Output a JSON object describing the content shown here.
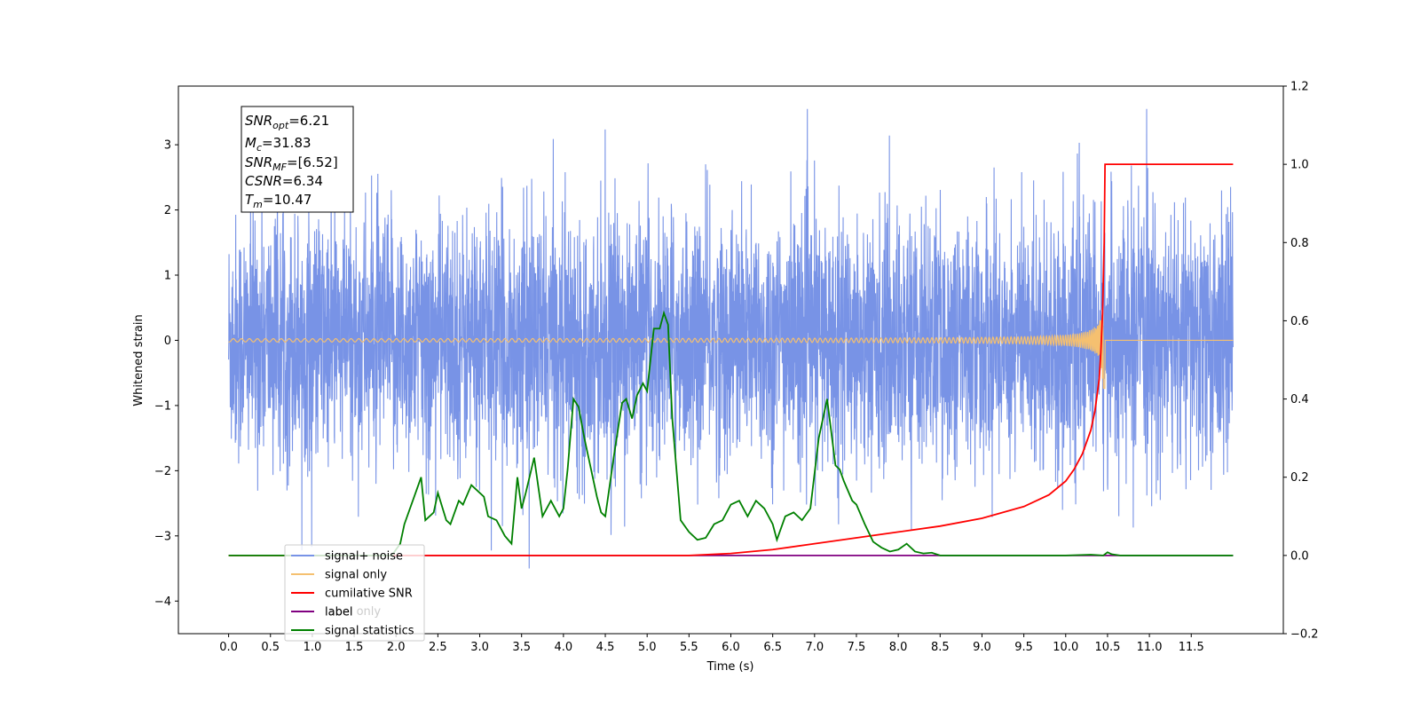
{
  "chart_data": {
    "type": "line",
    "xlabel": "Time (s)",
    "ylabel": "Whitened strain",
    "xlim": [
      -0.6,
      12.6
    ],
    "ylim": [
      -4.5,
      3.9
    ],
    "ylim_right": [
      -0.2,
      1.2
    ],
    "x_ticks": [
      "0.0",
      "0.5",
      "1.0",
      "1.5",
      "2.0",
      "2.5",
      "3.0",
      "3.5",
      "4.0",
      "4.5",
      "5.0",
      "5.5",
      "6.0",
      "6.5",
      "7.0",
      "7.5",
      "8.0",
      "8.5",
      "9.0",
      "9.5",
      "10.0",
      "10.5",
      "11.0",
      "11.5"
    ],
    "y_ticks_left": [
      "3",
      "2",
      "1",
      "0",
      "−1",
      "−2",
      "−3",
      "−4"
    ],
    "y_ticks_right": [
      "1.2",
      "1.0",
      "0.8",
      "0.6",
      "0.4",
      "0.2",
      "0.0",
      "−0.2"
    ],
    "annotation": {
      "snr_opt": {
        "label": "SNR",
        "sub": "opt",
        "value": "=6.21"
      },
      "mc": {
        "label": "M",
        "sub": "c",
        "value": "=31.83"
      },
      "snr_mf": {
        "label": "SNR",
        "sub": "MF",
        "value": "=[6.52]"
      },
      "csnr": {
        "label": "CSNR",
        "sub": "",
        "value": "=6.34"
      },
      "tm": {
        "label": "T",
        "sub": "m",
        "value": "=10.47"
      }
    },
    "series": [
      {
        "name": "signal+ noise",
        "color": "#7893e6",
        "axis": "left",
        "description_of_values": "whitened noise, approx. normal amplitude ±2.5, spikes to ±3.5, span 0.0–12.0 s"
      },
      {
        "name": "signal only",
        "color": "#f5c070",
        "axis": "left",
        "description_of_values": "chirp; amplitude ~0.02 until 8 s, grows to ~0.6 at 10.47 s, then 0"
      },
      {
        "name": "cumilative SNR",
        "color": "#ff0000",
        "axis": "right",
        "x": [
          0.0,
          5.5,
          6.0,
          6.5,
          7.0,
          7.5,
          8.0,
          8.5,
          9.0,
          9.5,
          9.8,
          10.0,
          10.1,
          10.2,
          10.3,
          10.35,
          10.4,
          10.42,
          10.44,
          10.46,
          10.47,
          12.0
        ],
        "y": [
          0.0,
          0.0,
          0.005,
          0.015,
          0.03,
          0.045,
          0.06,
          0.075,
          0.095,
          0.125,
          0.155,
          0.19,
          0.22,
          0.26,
          0.32,
          0.37,
          0.45,
          0.52,
          0.62,
          0.8,
          1.0,
          1.0
        ]
      },
      {
        "name": "label",
        "color": "#800080",
        "axis": "right",
        "x": [
          1.0,
          12.0
        ],
        "y": [
          0.0,
          0.0
        ]
      },
      {
        "name": "label only",
        "color": "#808080",
        "axis": "right",
        "hidden": true
      },
      {
        "name": "signal statistics",
        "color": "#008000",
        "axis": "right",
        "x": [
          0.0,
          1.95,
          2.05,
          2.1,
          2.2,
          2.3,
          2.35,
          2.45,
          2.5,
          2.6,
          2.65,
          2.75,
          2.8,
          2.9,
          2.95,
          3.05,
          3.1,
          3.2,
          3.3,
          3.38,
          3.45,
          3.5,
          3.55,
          3.65,
          3.75,
          3.85,
          3.95,
          4.0,
          4.05,
          4.12,
          4.18,
          4.25,
          4.3,
          4.4,
          4.45,
          4.5,
          4.6,
          4.7,
          4.75,
          4.82,
          4.88,
          4.95,
          5.0,
          5.08,
          5.15,
          5.2,
          5.25,
          5.3,
          5.4,
          5.5,
          5.6,
          5.7,
          5.8,
          5.9,
          6.0,
          6.1,
          6.2,
          6.3,
          6.4,
          6.5,
          6.55,
          6.65,
          6.75,
          6.85,
          6.95,
          7.05,
          7.15,
          7.25,
          7.3,
          7.35,
          7.45,
          7.5,
          7.6,
          7.7,
          7.8,
          7.9,
          8.0,
          8.1,
          8.2,
          8.3,
          8.4,
          8.5,
          9.0,
          10.0,
          10.3,
          10.45,
          10.5,
          10.55,
          10.65,
          11.0,
          12.0
        ],
        "y": [
          0.0,
          0.0,
          0.03,
          0.08,
          0.14,
          0.2,
          0.09,
          0.11,
          0.16,
          0.09,
          0.08,
          0.14,
          0.13,
          0.18,
          0.17,
          0.15,
          0.1,
          0.09,
          0.05,
          0.03,
          0.2,
          0.12,
          0.16,
          0.25,
          0.1,
          0.14,
          0.1,
          0.12,
          0.22,
          0.4,
          0.38,
          0.3,
          0.25,
          0.15,
          0.11,
          0.1,
          0.25,
          0.39,
          0.4,
          0.35,
          0.41,
          0.44,
          0.42,
          0.58,
          0.58,
          0.62,
          0.59,
          0.35,
          0.09,
          0.06,
          0.04,
          0.045,
          0.08,
          0.09,
          0.13,
          0.14,
          0.1,
          0.14,
          0.12,
          0.08,
          0.04,
          0.1,
          0.11,
          0.09,
          0.12,
          0.3,
          0.4,
          0.23,
          0.22,
          0.19,
          0.14,
          0.13,
          0.08,
          0.035,
          0.02,
          0.01,
          0.015,
          0.03,
          0.01,
          0.005,
          0.007,
          0.0,
          0.0,
          0.0,
          0.002,
          0.0,
          0.008,
          0.003,
          0.0,
          0.0,
          0.0
        ]
      }
    ]
  }
}
